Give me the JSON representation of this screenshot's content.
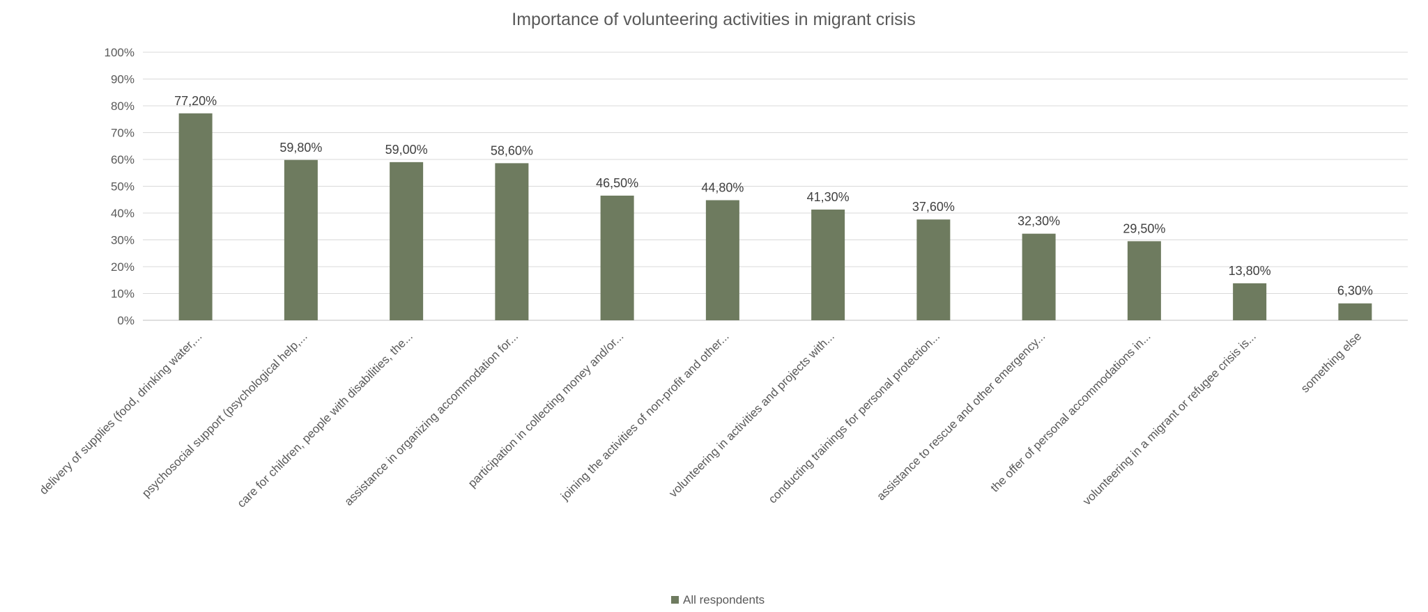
{
  "chart_data": {
    "type": "bar",
    "title": "Importance of volunteering activities in migrant crisis",
    "xlabel": "",
    "ylabel": "",
    "ylim": [
      0,
      100
    ],
    "y_ticks": [
      "0%",
      "10%",
      "20%",
      "30%",
      "40%",
      "50%",
      "60%",
      "70%",
      "80%",
      "90%",
      "100%"
    ],
    "grid": true,
    "legend_position": "bottom",
    "categories": [
      "delivery of supplies (food, drinking water,...",
      "psychosocial support (psychological help,...",
      "care for children, people with disabilities, the...",
      "assistance in organizing accommodation for...",
      "participation in collecting money and/or...",
      "joining the activities of non-profit and other...",
      "volunteering in activities and projects with...",
      "conducting trainings for personal protection...",
      "assistance to rescue and other emergency...",
      "the offer of personal accommodations in...",
      "volunteering in a migrant or refugee crisis is...",
      "something else"
    ],
    "series": [
      {
        "name": "All respondents",
        "color": "#6e7b5f",
        "values": [
          77.2,
          59.8,
          59.0,
          58.6,
          46.5,
          44.8,
          41.3,
          37.6,
          32.3,
          29.5,
          13.8,
          6.3
        ],
        "data_labels": [
          "77,20%",
          "59,80%",
          "59,00%",
          "58,60%",
          "46,50%",
          "44,80%",
          "41,30%",
          "37,60%",
          "32,30%",
          "29,50%",
          "13,80%",
          "6,30%"
        ]
      }
    ]
  }
}
